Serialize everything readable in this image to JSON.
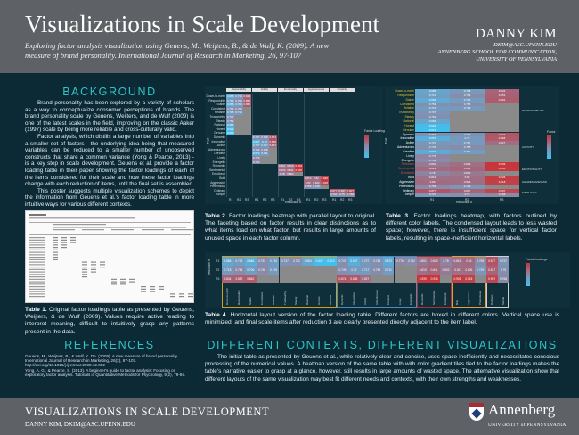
{
  "header": {
    "title": "Visualizations in Scale Development",
    "subtitle": "Exploring factor analysis visualization using Geuens, M., Weijters, B., & de Wulf, K. (2009). A new measure of brand personality. International Journal of Research in Marketing, 26, 97-107",
    "author": "DANNY KIM",
    "email": "DKIM@ASC.UPENN.EDU",
    "affil1": "ANNENBERG SCHOOL FOR COMMUNICATION,",
    "affil2": "UNIVERSITY OF PENNSYLVANIA"
  },
  "background": {
    "heading": "BACKGROUND",
    "p1": "Brand personality has been explored by a variety of scholars as a way to conceptualize consumer perceptions of brands. The brand personality scale by Geuens, Weijters, and de Wulf (2009) is one of the latest scales in the field, improving on the classic Aaker (1997) scale by being more reliable and cross-culturally valid.",
    "p2": "Factor analysis, which distills a large number of variables into a smaller set of factors - the underlying idea being that measured variables can be reduced to a smaller number of unobserved constructs that share a common variance (Yong & Pearce, 2013) - is a key step in scale development. Geuens et al. provide a factor loading table in their paper showing the factor loadings of each of the items considered for their scale and how these factor loadings change with each reduction of items, until the final set is assembled.",
    "p3": "This poster suggests multiple visualization schemes to depict the information from Geuens et al.'s factor loading table in more intuitive ways for various different contexts."
  },
  "captions": {
    "t1_label": "Table 1.",
    "t1": " Original factor loadings table as presented by Geuens, Weijters, & de Wulf (2009). Values require active reading to interpret meaning, difficult to intuitively grasp any patterns present in the data.",
    "t2_label": "Table 2.",
    "t2": " Factor loadings heatmap with parallel layout to original. The faceting based on factor results in clear distinctions as to what items load on what factor, but results in large amounts of unused space in each factor column.",
    "t3_label": "Table 3.",
    "t3": " Factor loadings heatmap, with factors outlined by different color labels. The condensed layout leads to less wasted space; however, there is insufficient space for vertical factor labels, resulting in space-inefficient horizontal labels.",
    "t4_label": "Table 4.",
    "t4": " Horizontal layout version of the factor loading table. Different factors are boxed in different colors. Vertical space use is minimized, and final scale items after reduction 3 are clearly presented directly adjacent to the item label."
  },
  "references": {
    "heading": "REFERENCES",
    "items": [
      "Geuens, M., Weijters, B., & Wulf, K. De. (2009). A new measure of brand personality. International Journal of Research in Marketing, 26(2), 97-107. http://doi.org/10.1016/j.ijresmar.2008.12.002",
      "Yong, A. G., & Pearce, S. (2013). A beginner's guide to factor analysis: Focusing on exploratory factor analysis. Tutorials in Quantitative Methods for Psychology, 9(2), 79-94."
    ]
  },
  "contexts": {
    "heading": "DIFFERENT CONTEXTS, DIFFERENT VISUALIZATIONS",
    "text": "The initial table as presented by Geuens et al., while relatively clear and concise, uses space inefficiently and necessitates conscious processing of the numerical values. A heatmap version of the same table with with color gradient tiles tied to the factor loadings makes the table's narrative easier to grasp at a glance, however, still results in large amounts of wasted space. The alternative visualization show that different layouts of the same visualization may best fit different needs and contexts, with their own strengths and weaknesses."
  },
  "footer": {
    "title": "VISUALIZATIONS IN SCALE DEVELOPMENT",
    "sub": "DANNY KIM, DKIM@ASC.UPENN.EDU",
    "logo": "Annenberg",
    "logo_sub": "UNIVERSITY of PENNSYLVANIA"
  },
  "chart_data": {
    "type": "heatmap",
    "reductions": [
      "R1",
      "R2",
      "R3"
    ],
    "xlabel": "Reduction #",
    "ylabel": "Trait",
    "legend_title_t2": "Factor Loadings",
    "legend_title_t3": "Factor",
    "legend_title_t4": "Factor Loadings",
    "colors": {
      "low": "#3ec3f3",
      "mid": "#8d88a6",
      "high": "#c8363c",
      "missing": "#8a8a8a"
    },
    "factors": [
      {
        "name": "Responsibility",
        "color": "#c9a227",
        "items": [
          [
            "Down-to-earth",
            [
              0.686,
              0.718,
              0.844
            ]
          ],
          [
            "Responsible",
            [
              0.712,
              0.763,
              0.852
            ]
          ],
          [
            "Stable",
            [
              0.666,
              0.706,
              0.862
            ]
          ],
          [
            "Consistent",
            [
              0.753,
              0.765,
              null
            ]
          ],
          [
            "Reliable",
            [
              0.715,
              0.719,
              null
            ]
          ],
          [
            "Trustworthy",
            [
              0.737,
              null,
              null
            ]
          ],
          [
            "Steady",
            [
              0.752,
              null,
              null
            ]
          ],
          [
            "Rational",
            [
              0.684,
              null,
              null
            ]
          ],
          [
            "Honest",
            [
              0.622,
              null,
              null
            ]
          ],
          [
            "Genuine",
            [
              0.613,
              null,
              null
            ]
          ]
        ]
      },
      {
        "name": "Activity",
        "color": "#4a8cc0",
        "items": [
          [
            "Dynamic",
            [
              0.747,
              0.749,
              0.874
            ]
          ],
          [
            "Innovative",
            [
              0.657,
              0.72,
              0.868
            ]
          ],
          [
            "Active",
            [
              0.727,
              0.717,
              0.827
            ]
          ],
          [
            "Adventurous",
            [
              0.743,
              0.758,
              null
            ]
          ],
          [
            "Creative",
            [
              0.672,
              0.711,
              null
            ]
          ],
          [
            "Lively",
            [
              0.776,
              null,
              null
            ]
          ],
          [
            "Energetic",
            [
              0.762,
              null,
              null
            ]
          ]
        ]
      },
      {
        "name": "Emotionality",
        "color": "#b0302f",
        "items": [
          [
            "Romantic",
            [
              0.801,
              0.819,
              0.939
            ]
          ],
          [
            "Sentimental",
            [
              0.829,
              0.841,
              0.936
            ]
          ],
          [
            "Emotional",
            [
              0.78,
              0.802,
              null
            ]
          ]
        ]
      },
      {
        "name": "Aggressiveness",
        "color": "#e0a040",
        "items": [
          [
            "Bold",
            [
              0.816,
              0.82,
              0.926
            ]
          ],
          [
            "Aggressive",
            [
              0.83,
              0.826,
              0.918
            ]
          ],
          [
            "Pretentious",
            [
              0.759,
              0.729,
              null
            ]
          ]
        ]
      },
      {
        "name": "Simplicity",
        "color": "#cfcfcf",
        "items": [
          [
            "Ordinary",
            [
              0.877,
              0.847,
              0.907
            ]
          ],
          [
            "Simple",
            [
              0.737,
              0.75,
              0.768
            ]
          ]
        ]
      }
    ]
  }
}
